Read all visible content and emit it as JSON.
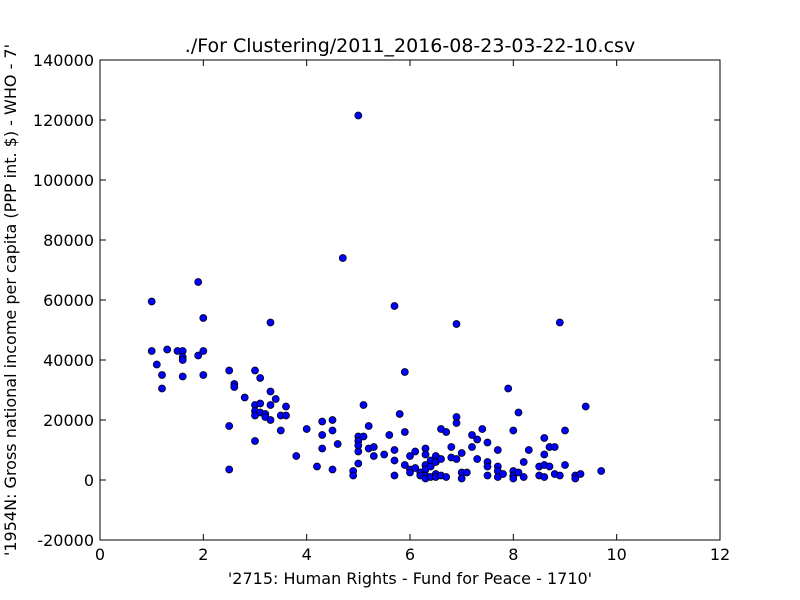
{
  "chart_data": {
    "type": "scatter",
    "title": "./For Clustering/2011_2016-08-23-03-22-10.csv",
    "xlabel": "'2715: Human Rights - Fund for Peace - 1710'",
    "ylabel": "'1954N: Gross national income per capita (PPP int. $) - WHO - 7'",
    "xlim": [
      0,
      12
    ],
    "ylim": [
      -20000,
      140000
    ],
    "xticks": [
      0,
      2,
      4,
      6,
      8,
      10,
      12
    ],
    "yticks": [
      -20000,
      0,
      20000,
      40000,
      60000,
      80000,
      100000,
      120000,
      140000
    ],
    "grid": false,
    "marker_color": "#0000ff",
    "points": [
      [
        1.0,
        59500
      ],
      [
        1.0,
        43000
      ],
      [
        1.1,
        38500
      ],
      [
        1.2,
        35000
      ],
      [
        1.2,
        30500
      ],
      [
        1.3,
        43500
      ],
      [
        1.5,
        43000
      ],
      [
        1.6,
        43000
      ],
      [
        1.6,
        41000
      ],
      [
        1.6,
        40000
      ],
      [
        1.6,
        34500
      ],
      [
        1.9,
        66000
      ],
      [
        1.9,
        41500
      ],
      [
        2.0,
        54000
      ],
      [
        2.0,
        43000
      ],
      [
        2.0,
        35000
      ],
      [
        2.5,
        36500
      ],
      [
        2.5,
        18000
      ],
      [
        2.5,
        3500
      ],
      [
        2.6,
        32000
      ],
      [
        2.6,
        31000
      ],
      [
        2.8,
        27500
      ],
      [
        3.0,
        36500
      ],
      [
        3.0,
        25000
      ],
      [
        3.0,
        23000
      ],
      [
        3.0,
        21500
      ],
      [
        3.0,
        13000
      ],
      [
        3.1,
        34000
      ],
      [
        3.1,
        25500
      ],
      [
        3.1,
        22500
      ],
      [
        3.2,
        22000
      ],
      [
        3.2,
        21000
      ],
      [
        3.3,
        52500
      ],
      [
        3.3,
        29500
      ],
      [
        3.3,
        25000
      ],
      [
        3.3,
        20000
      ],
      [
        3.4,
        27000
      ],
      [
        3.5,
        21500
      ],
      [
        3.5,
        16500
      ],
      [
        3.6,
        24500
      ],
      [
        3.6,
        21500
      ],
      [
        3.8,
        8000
      ],
      [
        4.0,
        17000
      ],
      [
        4.2,
        4500
      ],
      [
        4.3,
        19500
      ],
      [
        4.3,
        15000
      ],
      [
        4.3,
        10500
      ],
      [
        4.5,
        20000
      ],
      [
        4.5,
        16500
      ],
      [
        4.5,
        3500
      ],
      [
        4.6,
        12000
      ],
      [
        4.7,
        74000
      ],
      [
        4.9,
        3000
      ],
      [
        4.9,
        1500
      ],
      [
        5.0,
        121500
      ],
      [
        5.0,
        14500
      ],
      [
        5.0,
        13000
      ],
      [
        5.0,
        11500
      ],
      [
        5.0,
        9500
      ],
      [
        5.0,
        5500
      ],
      [
        5.1,
        25000
      ],
      [
        5.1,
        14500
      ],
      [
        5.2,
        18000
      ],
      [
        5.2,
        10500
      ],
      [
        5.3,
        11000
      ],
      [
        5.3,
        8000
      ],
      [
        5.5,
        8500
      ],
      [
        5.6,
        15000
      ],
      [
        5.7,
        58000
      ],
      [
        5.7,
        10000
      ],
      [
        5.7,
        6500
      ],
      [
        5.7,
        1500
      ],
      [
        5.8,
        22000
      ],
      [
        5.9,
        36000
      ],
      [
        5.9,
        16000
      ],
      [
        5.9,
        5000
      ],
      [
        6.0,
        8000
      ],
      [
        6.0,
        3500
      ],
      [
        6.0,
        2500
      ],
      [
        6.1,
        9500
      ],
      [
        6.1,
        4000
      ],
      [
        6.2,
        2500
      ],
      [
        6.2,
        1500
      ],
      [
        6.3,
        10500
      ],
      [
        6.3,
        8500
      ],
      [
        6.3,
        5000
      ],
      [
        6.3,
        3500
      ],
      [
        6.3,
        1500
      ],
      [
        6.3,
        500
      ],
      [
        6.4,
        6500
      ],
      [
        6.4,
        4500
      ],
      [
        6.4,
        1000
      ],
      [
        6.5,
        8000
      ],
      [
        6.5,
        6000
      ],
      [
        6.5,
        2000
      ],
      [
        6.5,
        1000
      ],
      [
        6.6,
        17000
      ],
      [
        6.6,
        7000
      ],
      [
        6.6,
        1500
      ],
      [
        6.7,
        16000
      ],
      [
        6.7,
        1000
      ],
      [
        6.8,
        11000
      ],
      [
        6.8,
        7500
      ],
      [
        6.9,
        52000
      ],
      [
        6.9,
        21000
      ],
      [
        6.9,
        19000
      ],
      [
        6.9,
        7000
      ],
      [
        7.0,
        9000
      ],
      [
        7.0,
        2500
      ],
      [
        7.0,
        500
      ],
      [
        7.1,
        2500
      ],
      [
        7.2,
        15000
      ],
      [
        7.2,
        11000
      ],
      [
        7.3,
        13500
      ],
      [
        7.3,
        7000
      ],
      [
        7.4,
        17000
      ],
      [
        7.5,
        12500
      ],
      [
        7.5,
        6000
      ],
      [
        7.5,
        4500
      ],
      [
        7.5,
        1500
      ],
      [
        7.7,
        10000
      ],
      [
        7.7,
        4500
      ],
      [
        7.7,
        3000
      ],
      [
        7.7,
        1000
      ],
      [
        7.8,
        2000
      ],
      [
        7.9,
        30500
      ],
      [
        8.0,
        16500
      ],
      [
        8.0,
        3000
      ],
      [
        8.0,
        1500
      ],
      [
        8.0,
        500
      ],
      [
        8.1,
        22500
      ],
      [
        8.1,
        2500
      ],
      [
        8.2,
        6000
      ],
      [
        8.2,
        1000
      ],
      [
        8.3,
        10000
      ],
      [
        8.5,
        4500
      ],
      [
        8.5,
        1500
      ],
      [
        8.6,
        14000
      ],
      [
        8.6,
        8500
      ],
      [
        8.6,
        5000
      ],
      [
        8.6,
        1000
      ],
      [
        8.7,
        11000
      ],
      [
        8.7,
        4500
      ],
      [
        8.8,
        11000
      ],
      [
        8.8,
        2000
      ],
      [
        8.9,
        52500
      ],
      [
        8.9,
        1500
      ],
      [
        9.0,
        16500
      ],
      [
        9.0,
        5000
      ],
      [
        9.2,
        1500
      ],
      [
        9.2,
        500
      ],
      [
        9.3,
        2000
      ],
      [
        9.4,
        24500
      ],
      [
        9.7,
        3000
      ]
    ]
  }
}
